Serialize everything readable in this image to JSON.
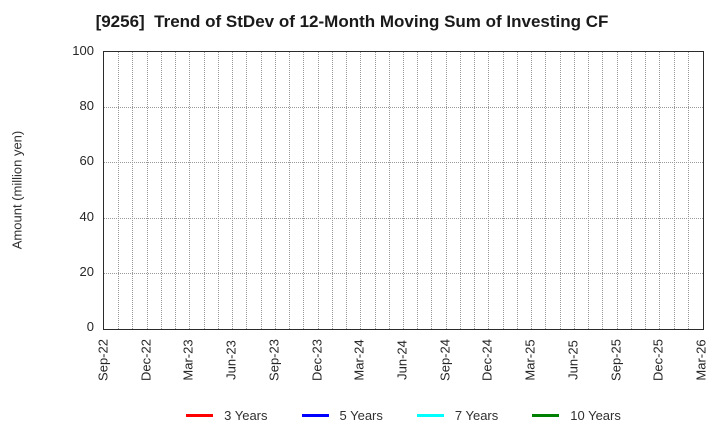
{
  "chart_data": {
    "type": "line",
    "title": "[9256]  Trend of StDev of 12-Month Moving Sum of Investing CF",
    "ylabel": "Amount (million yen)",
    "xlabel": "",
    "ylim": [
      0,
      100
    ],
    "yticks": [
      0,
      20,
      40,
      60,
      80,
      100
    ],
    "x_tick_labels": [
      "Sep-22",
      "Dec-22",
      "Mar-23",
      "Jun-23",
      "Sep-23",
      "Dec-23",
      "Mar-24",
      "Jun-24",
      "Sep-24",
      "Dec-24",
      "Mar-25",
      "Jun-25",
      "Sep-25",
      "Dec-25",
      "Mar-26"
    ],
    "months_between_labels": 3,
    "total_month_slots": 42,
    "grid": "dotted",
    "legend_position": "bottom",
    "series": [
      {
        "name": "3 Years",
        "color": "#ff0000",
        "values": []
      },
      {
        "name": "5 Years",
        "color": "#0000ff",
        "values": []
      },
      {
        "name": "7 Years",
        "color": "#00ffff",
        "values": []
      },
      {
        "name": "10 Years",
        "color": "#008000",
        "values": []
      }
    ]
  },
  "colors": {
    "grid": "#999999",
    "axis_border": "#2b2b2b",
    "tick_text": "#262626",
    "title_text": "#1a1a1a",
    "background": "#ffffff"
  }
}
